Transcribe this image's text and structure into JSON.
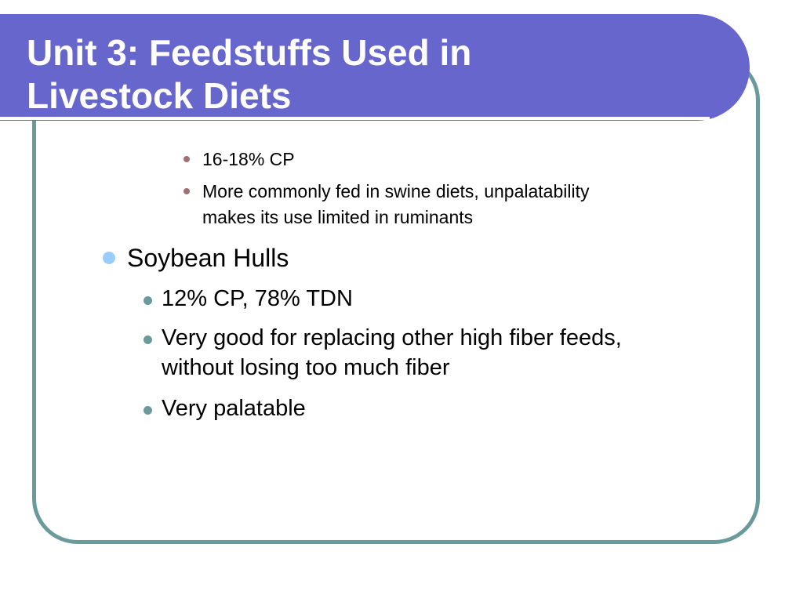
{
  "slide": {
    "title_line1": "Unit 3:  Feedstuffs Used in",
    "title_line2": "Livestock Diets"
  },
  "content": {
    "level3_items": [
      {
        "text": "16-18% CP"
      },
      {
        "text_line1": "More commonly fed in swine diets, unpalatability",
        "text_line2": "makes its use limited in ruminants"
      }
    ],
    "level1_item": {
      "text": "Soybean Hulls"
    },
    "level2_items": [
      {
        "text": "12% CP, 78% TDN"
      },
      {
        "text_line1": "Very good for replacing other high fiber feeds,",
        "text_line2": "without losing too much fiber"
      },
      {
        "text": "Very palatable"
      }
    ]
  },
  "colors": {
    "title_bar": "#6666cc",
    "frame_border": "#6a9a9a",
    "level1_bullet": "#99ccff",
    "level2_bullet": "#6a9a9a",
    "level3_bullet": "#a07070"
  }
}
